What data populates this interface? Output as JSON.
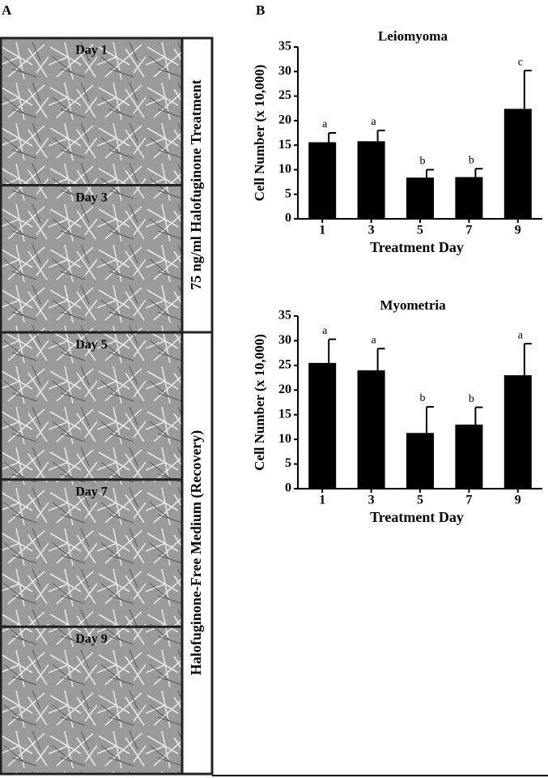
{
  "panel_a": {
    "label": "A",
    "images": [
      "Day 1",
      "Day 3",
      "Day 5",
      "Day 7",
      "Day 9"
    ],
    "treatment": "75 ng/ml Halofuginone Treatment",
    "recovery": "Halofuginone-Free Medium (Recovery)"
  },
  "panel_b": {
    "label": "B"
  },
  "chart_data": [
    {
      "type": "bar",
      "title": "Leiomyoma",
      "xlabel": "Treatment Day",
      "ylabel": "Cell Number (x 10,000)",
      "categories": [
        "1",
        "3",
        "5",
        "7",
        "9"
      ],
      "values": [
        15.6,
        15.8,
        8.4,
        8.5,
        22.4
      ],
      "errors": [
        1.9,
        2.2,
        1.6,
        1.7,
        7.8
      ],
      "bar_labels": [
        "a",
        "a",
        "b",
        "b",
        "c"
      ],
      "color": "#000000",
      "ylim": [
        0,
        35
      ],
      "yticks": [
        0,
        5,
        10,
        15,
        20,
        25,
        30,
        35
      ]
    },
    {
      "type": "bar",
      "title": "Myometria",
      "xlabel": "Treatment Day",
      "ylabel": "Cell Number (x 10,000)",
      "categories": [
        "1",
        "3",
        "5",
        "7",
        "9"
      ],
      "values": [
        25.5,
        24.0,
        11.3,
        13.0,
        23.0
      ],
      "errors": [
        4.8,
        4.4,
        5.3,
        3.5,
        6.4
      ],
      "bar_labels": [
        "a",
        "a",
        "b",
        "b",
        "a"
      ],
      "color": "#000000",
      "ylim": [
        0,
        35
      ],
      "yticks": [
        0,
        5,
        10,
        15,
        20,
        25,
        30,
        35
      ]
    }
  ]
}
